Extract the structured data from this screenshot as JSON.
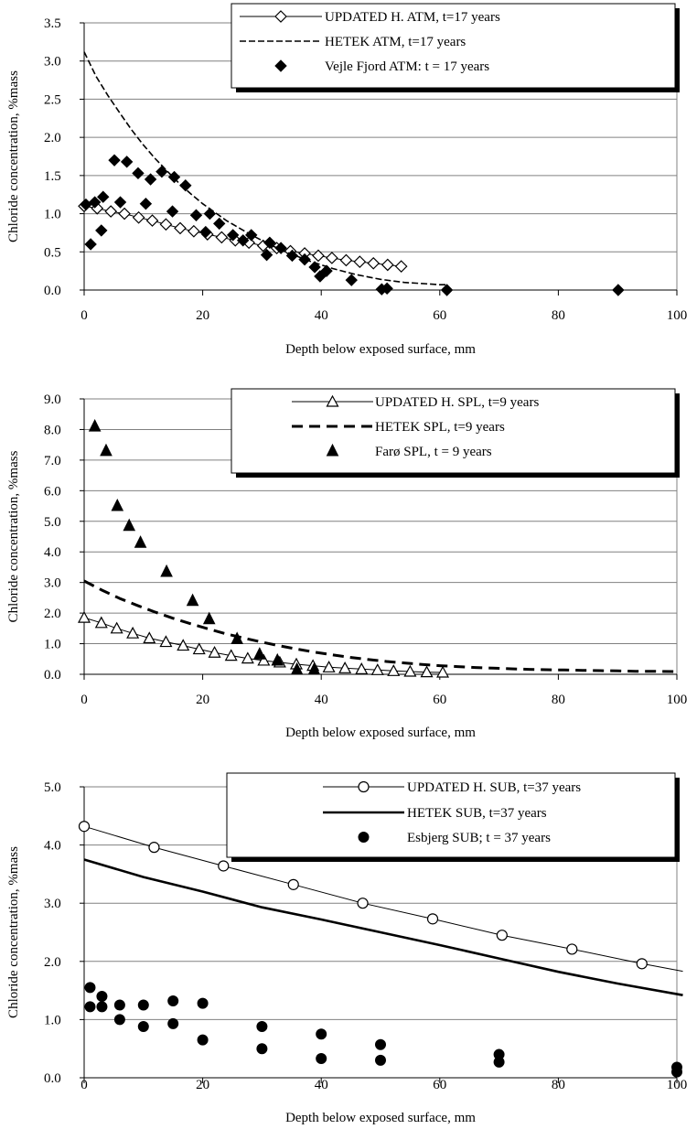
{
  "chart_data": [
    {
      "type": "line",
      "xlabel": "Depth below exposed surface, mm",
      "ylabel": "Chloride concentration, %mass",
      "xlim": [
        0,
        100
      ],
      "ylim": [
        0,
        3.5
      ],
      "x_ticks": [
        "0",
        "20",
        "40",
        "60",
        "80",
        "100"
      ],
      "y_ticks": [
        "0.0",
        "0.5",
        "1.0",
        "1.5",
        "2.0",
        "2.5",
        "3.0",
        "3.5"
      ],
      "grid": "horizontal",
      "legend_position": "top-right",
      "series": [
        {
          "name": "UPDATED H. ATM, t=17 years",
          "style": "line-open-diamond",
          "x": [
            0,
            2.2,
            4.5,
            6.8,
            9.2,
            11.5,
            13.8,
            16.2,
            18.5,
            20.8,
            23.2,
            25.5,
            27.8,
            30.2,
            32.5,
            34.8,
            37.2,
            39.5,
            41.8,
            44.2,
            46.5,
            48.8,
            51.2,
            53.5
          ],
          "y": [
            1.1,
            1.07,
            1.03,
            1.0,
            0.95,
            0.91,
            0.86,
            0.81,
            0.77,
            0.73,
            0.69,
            0.65,
            0.62,
            0.58,
            0.55,
            0.51,
            0.48,
            0.45,
            0.42,
            0.39,
            0.37,
            0.35,
            0.33,
            0.31
          ]
        },
        {
          "name": "HETEK ATM, t=17 years",
          "style": "dashed",
          "x": [
            0,
            2,
            4,
            6,
            8,
            10,
            12,
            14,
            16,
            18,
            20,
            22,
            24,
            26,
            28,
            30,
            32,
            34,
            36,
            38,
            40,
            42,
            44,
            46,
            48,
            50,
            52,
            54,
            56,
            58,
            60,
            61
          ],
          "y": [
            3.12,
            2.8,
            2.55,
            2.32,
            2.1,
            1.9,
            1.72,
            1.56,
            1.4,
            1.26,
            1.13,
            1.02,
            0.91,
            0.82,
            0.73,
            0.65,
            0.57,
            0.5,
            0.44,
            0.38,
            0.33,
            0.28,
            0.24,
            0.2,
            0.17,
            0.14,
            0.12,
            0.1,
            0.09,
            0.08,
            0.07,
            0.07
          ]
        },
        {
          "name": "Vejle Fjord ATM: t = 17 years",
          "style": "filled-diamond",
          "x": [
            0.3,
            1.1,
            1.8,
            2.9,
            3.2,
            5.1,
            6.1,
            7.2,
            9.1,
            10.4,
            11.2,
            13.1,
            14.9,
            15.2,
            17.1,
            18.9,
            20.5,
            21.2,
            22.8,
            25.1,
            26.8,
            28.2,
            30.8,
            31.3,
            33.2,
            35.1,
            37.2,
            38.9,
            39.8,
            40.9,
            45.1,
            50.2,
            51.1,
            61.2,
            90.1
          ],
          "y": [
            1.12,
            0.6,
            1.15,
            0.78,
            1.22,
            1.7,
            1.15,
            1.68,
            1.53,
            1.13,
            1.45,
            1.55,
            1.03,
            1.48,
            1.37,
            0.98,
            0.76,
            1.0,
            0.87,
            0.72,
            0.65,
            0.72,
            0.46,
            0.62,
            0.55,
            0.45,
            0.4,
            0.3,
            0.18,
            0.25,
            0.13,
            0.01,
            0.02,
            0.0,
            0.0
          ]
        }
      ]
    },
    {
      "type": "line",
      "xlabel": "Depth below exposed surface, mm",
      "ylabel": "Chloride concentration, %mass",
      "xlim": [
        0,
        100
      ],
      "ylim": [
        0,
        9
      ],
      "x_ticks": [
        "0",
        "20",
        "40",
        "60",
        "80",
        "100"
      ],
      "y_ticks": [
        "0.0",
        "1.0",
        "2.0",
        "3.0",
        "4.0",
        "5.0",
        "6.0",
        "7.0",
        "8.0",
        "9.0"
      ],
      "grid": "horizontal",
      "legend_position": "top-right",
      "series": [
        {
          "name": "UPDATED H. SPL, t=9 years",
          "style": "line-open-triangle",
          "x": [
            0,
            2.9,
            5.5,
            8.2,
            11,
            13.8,
            16.7,
            19.4,
            22,
            24.8,
            27.6,
            30.3,
            33,
            35.8,
            38.6,
            41.3,
            44,
            46.8,
            49.5,
            52.2,
            55,
            57.8,
            60.5
          ],
          "y": [
            1.85,
            1.68,
            1.5,
            1.34,
            1.18,
            1.06,
            0.94,
            0.82,
            0.71,
            0.61,
            0.52,
            0.45,
            0.39,
            0.33,
            0.28,
            0.23,
            0.2,
            0.17,
            0.14,
            0.11,
            0.09,
            0.07,
            0.06
          ]
        },
        {
          "name": "HETEK SPL, t=9 years",
          "style": "dashed-thick",
          "x": [
            0,
            3,
            6,
            9,
            12,
            15,
            18,
            21,
            24,
            27,
            30,
            33,
            36,
            39,
            42,
            45,
            48,
            51,
            54,
            57,
            60,
            63,
            66,
            69,
            72,
            75,
            78,
            81,
            84,
            87,
            90,
            93,
            96,
            100
          ],
          "y": [
            3.05,
            2.75,
            2.48,
            2.25,
            2.03,
            1.83,
            1.65,
            1.48,
            1.32,
            1.18,
            1.05,
            0.93,
            0.82,
            0.72,
            0.63,
            0.55,
            0.48,
            0.42,
            0.37,
            0.32,
            0.28,
            0.25,
            0.22,
            0.2,
            0.18,
            0.16,
            0.15,
            0.14,
            0.13,
            0.12,
            0.11,
            0.1,
            0.1,
            0.09
          ]
        },
        {
          "name": "Farø SPL, t = 9 years",
          "style": "filled-triangle",
          "x": [
            1.8,
            3.7,
            5.6,
            7.6,
            9.5,
            13.9,
            18.3,
            21.1,
            25.8,
            29.6,
            32.6,
            35.9,
            38.8
          ],
          "y": [
            8.1,
            7.3,
            5.5,
            4.85,
            4.3,
            3.35,
            2.4,
            1.8,
            1.15,
            0.65,
            0.45,
            0.15,
            0.15
          ]
        }
      ]
    },
    {
      "type": "line",
      "xlabel": "Depth below exposed surface, mm",
      "ylabel": "Chloride concentration, %mass",
      "xlim": [
        0,
        100
      ],
      "ylim": [
        0,
        5
      ],
      "x_ticks": [
        "0",
        "20",
        "40",
        "60",
        "80",
        "100"
      ],
      "y_ticks": [
        "0.0",
        "1.0",
        "2.0",
        "3.0",
        "4.0",
        "5.0"
      ],
      "grid": "horizontal",
      "legend_position": "top-right",
      "series": [
        {
          "name": "UPDATED H. SUB, t=37 years",
          "style": "line-open-circle",
          "markers_x": [
            0,
            11.8,
            23.5,
            35.3,
            47,
            58.8,
            70.5,
            82.3,
            94.1
          ],
          "x": [
            0,
            11.8,
            23.5,
            35.3,
            47,
            58.8,
            70.5,
            82.3,
            94.1,
            101
          ],
          "y": [
            4.32,
            3.96,
            3.64,
            3.32,
            3.0,
            2.73,
            2.45,
            2.21,
            1.96,
            1.83
          ]
        },
        {
          "name": "HETEK SUB, t=37 years",
          "style": "solid-thick",
          "x": [
            0,
            10,
            20,
            30,
            40,
            50,
            60,
            70,
            80,
            90,
            101
          ],
          "y": [
            3.75,
            3.45,
            3.2,
            2.93,
            2.72,
            2.5,
            2.28,
            2.05,
            1.82,
            1.62,
            1.42
          ]
        },
        {
          "name": "Esbjerg SUB; t = 37 years",
          "style": "filled-circle",
          "x": [
            1,
            1,
            3,
            3,
            6,
            6,
            10,
            10,
            15,
            15,
            20,
            20,
            30,
            30,
            40,
            40,
            50,
            50,
            70,
            70,
            100,
            100
          ],
          "y": [
            1.55,
            1.22,
            1.4,
            1.22,
            1.25,
            1.0,
            1.25,
            0.88,
            1.32,
            0.93,
            1.28,
            0.65,
            0.88,
            0.5,
            0.75,
            0.33,
            0.57,
            0.3,
            0.4,
            0.27,
            0.18,
            0.1
          ]
        }
      ]
    }
  ]
}
